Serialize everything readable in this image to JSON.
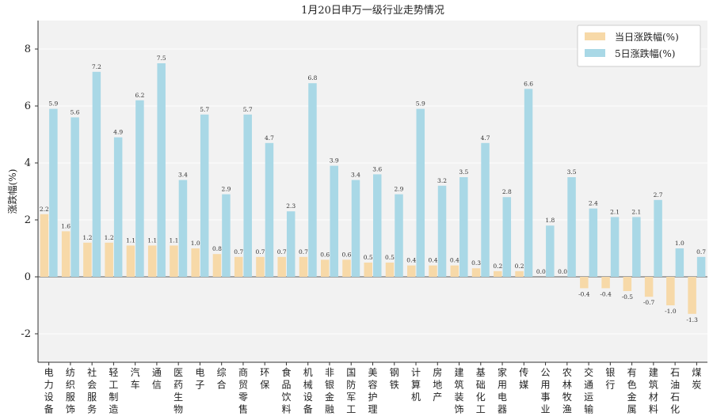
{
  "chart_data": {
    "type": "bar",
    "title": "1月20日申万一级行业走势情况",
    "xlabel": "",
    "ylabel": "涨跌幅(%)",
    "ylim": [
      -3,
      9
    ],
    "yticks": [
      -2,
      0,
      2,
      4,
      6,
      8
    ],
    "legend_position": "top-right",
    "grid": true,
    "categories": [
      "电力设备",
      "纺织服饰",
      "社会服务",
      "轻工制造",
      "汽车",
      "通信",
      "医药生物",
      "电子",
      "综合",
      "商贸零售",
      "环保",
      "食品饮料",
      "机械设备",
      "非银金融",
      "国防军工",
      "美容护理",
      "钢铁",
      "计算机",
      "房地产",
      "建筑装饰",
      "基础化工",
      "家用电器",
      "传媒",
      "公用事业",
      "农林牧渔",
      "交通运输",
      "银行",
      "有色金属",
      "建筑材料",
      "石油石化",
      "煤炭"
    ],
    "series": [
      {
        "name": "当日涨跌幅(%)",
        "color": "#f7d9a8",
        "values": [
          2.2,
          1.6,
          1.2,
          1.2,
          1.1,
          1.1,
          1.1,
          1.0,
          0.8,
          0.7,
          0.7,
          0.7,
          0.7,
          0.6,
          0.6,
          0.5,
          0.5,
          0.4,
          0.4,
          0.4,
          0.3,
          0.2,
          0.2,
          0.0,
          0.0,
          -0.4,
          -0.4,
          -0.5,
          -0.7,
          -1.0,
          -1.3
        ]
      },
      {
        "name": "5日涨跌幅(%)",
        "color": "#a9d8e6",
        "values": [
          5.9,
          5.6,
          7.2,
          4.9,
          6.2,
          7.5,
          3.4,
          5.7,
          2.9,
          5.7,
          4.7,
          2.3,
          6.8,
          3.9,
          3.4,
          3.6,
          2.9,
          5.9,
          3.2,
          3.5,
          4.7,
          2.8,
          6.6,
          1.8,
          3.5,
          2.4,
          2.1,
          2.1,
          2.7,
          1.0,
          0.7
        ]
      }
    ],
    "colors": {
      "plot_bg": "#f2f2f2",
      "grid": "#ffffff",
      "zero_line": "#555555"
    }
  }
}
